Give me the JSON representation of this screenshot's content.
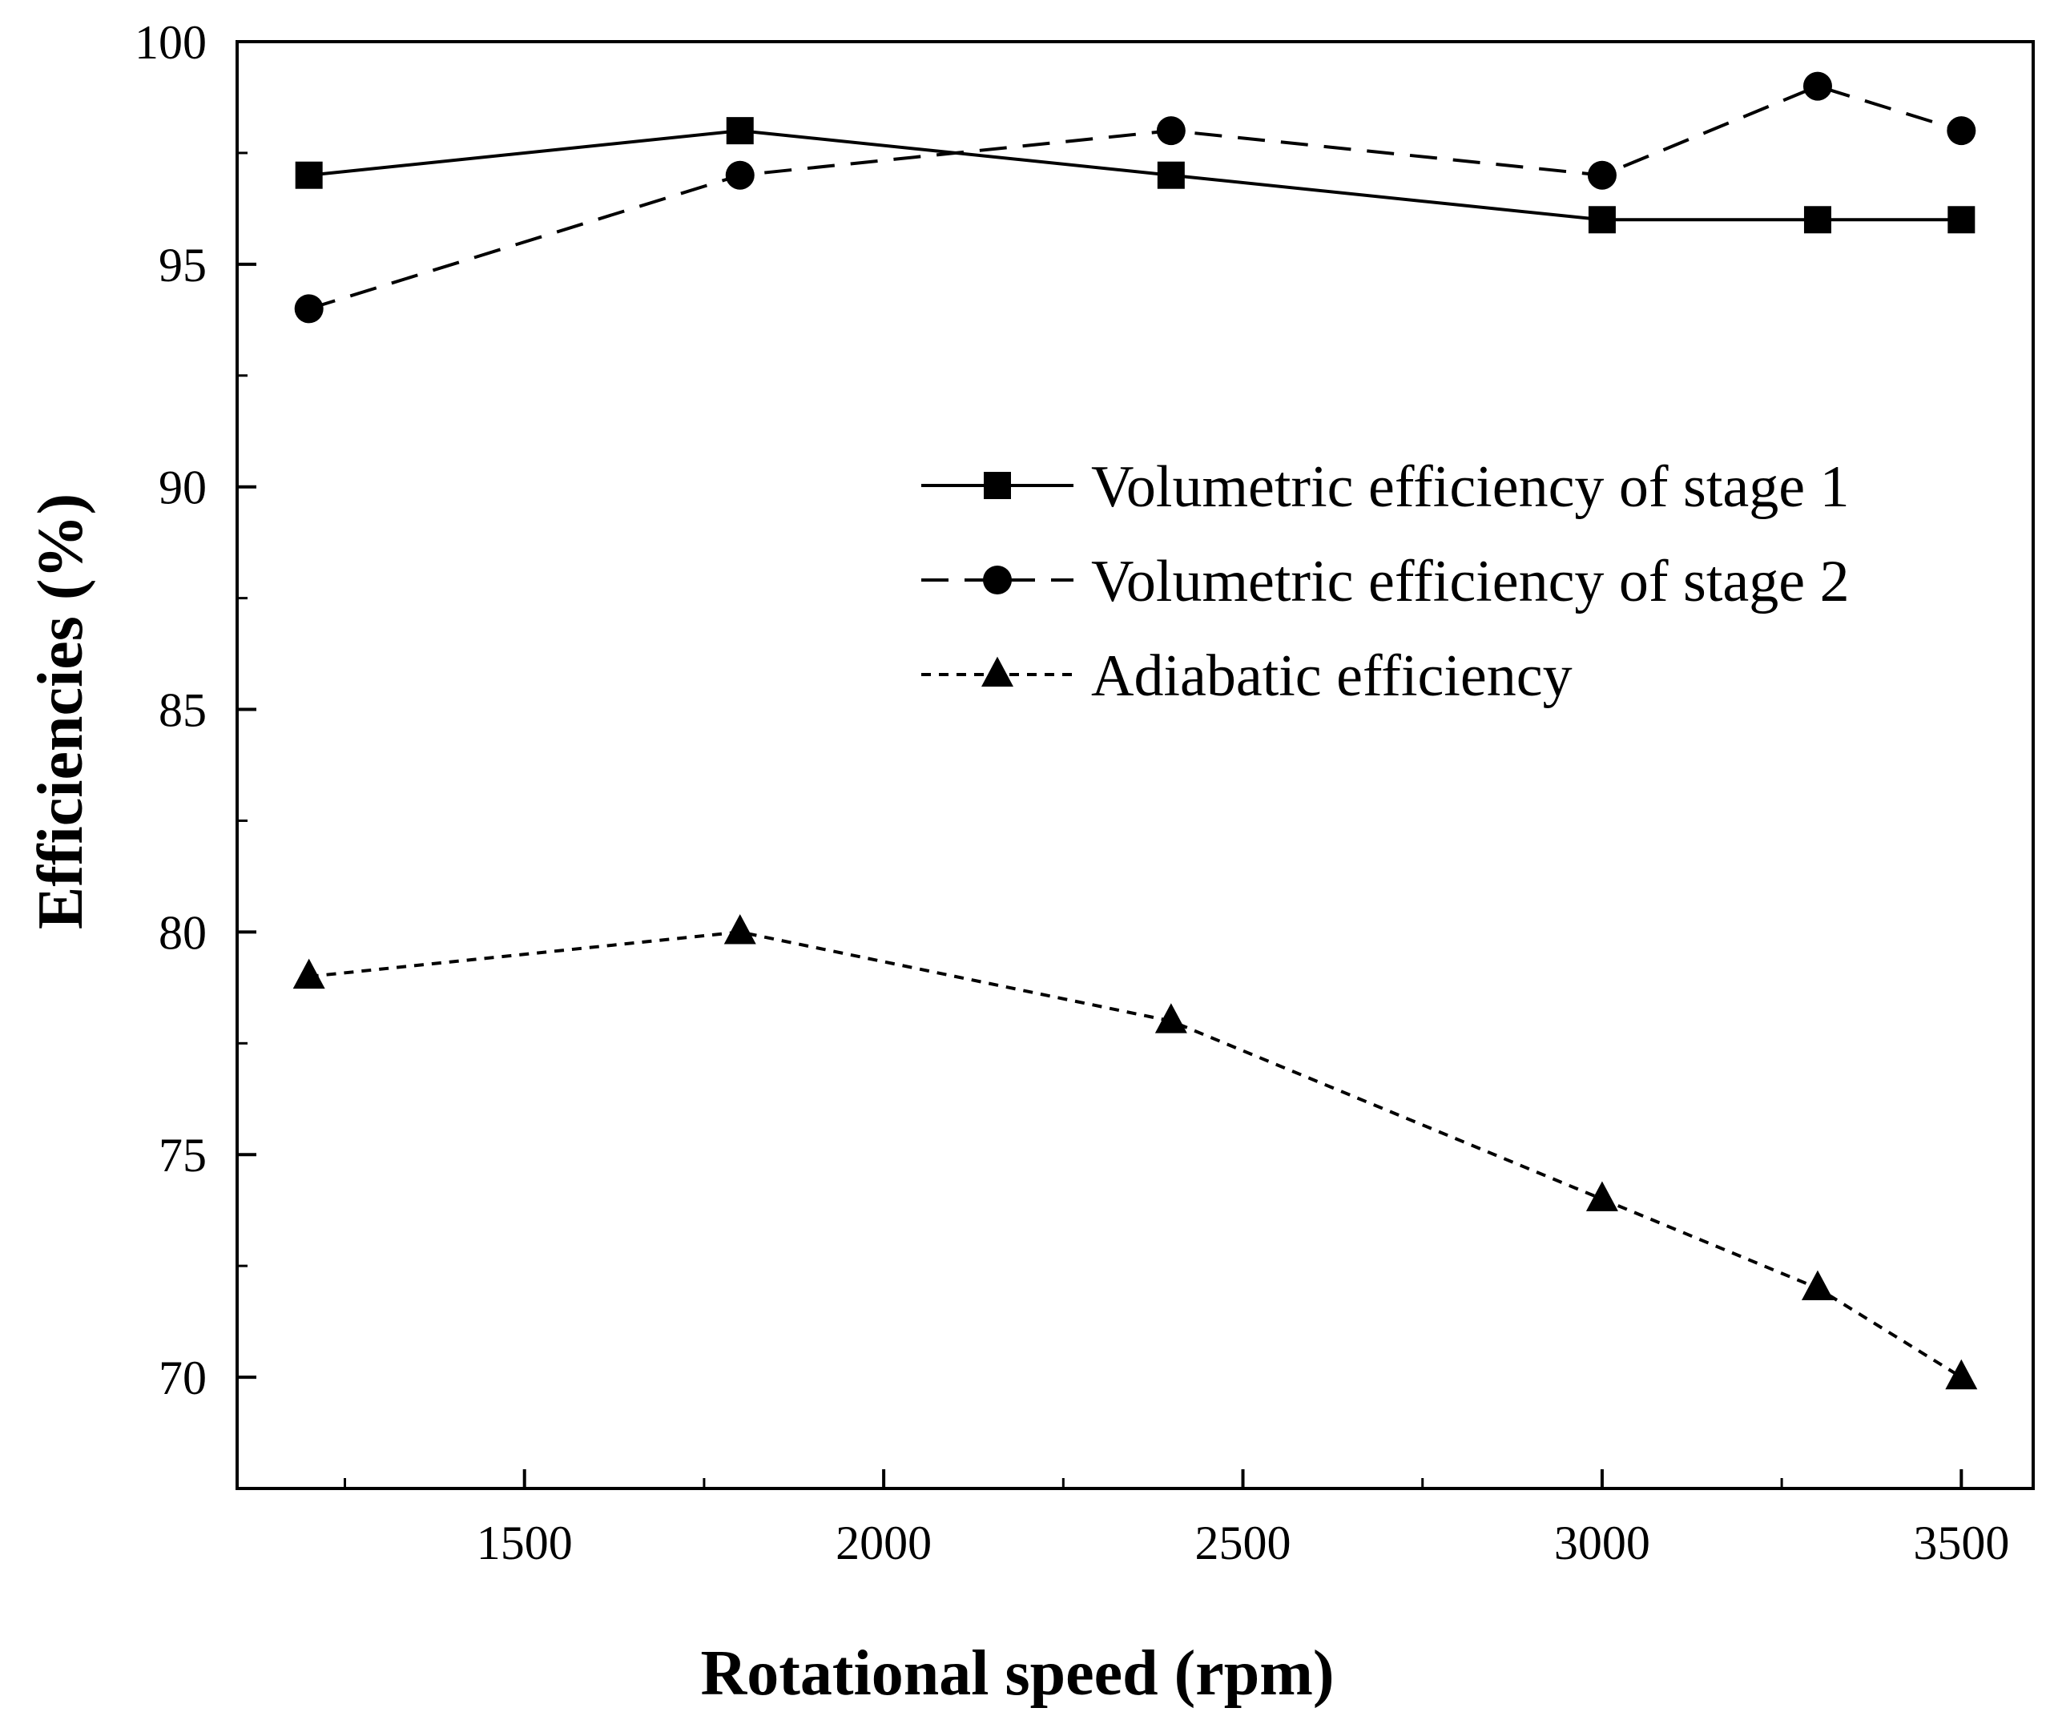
{
  "chart_data": {
    "type": "line",
    "title": "",
    "xlabel": "Rotational speed (rpm)",
    "ylabel": "Efficiencies (%)",
    "xlim": [
      1100,
      3600
    ],
    "ylim": [
      67.5,
      100
    ],
    "x_major_ticks": [
      1500,
      2000,
      2500,
      3000,
      3500
    ],
    "x_minor_ticks": [
      1250,
      1750,
      2250,
      2750,
      3250
    ],
    "y_major_ticks": [
      70,
      75,
      80,
      85,
      90,
      95,
      100
    ],
    "y_minor_ticks": [
      72.5,
      77.5,
      82.5,
      87.5,
      92.5,
      97.5
    ],
    "x_tick_labels": [
      "1500",
      "2000",
      "2500",
      "3000",
      "3500"
    ],
    "y_tick_labels": [
      "70",
      "75",
      "80",
      "85",
      "90",
      "95",
      "100"
    ],
    "grid": false,
    "legend_position": "center-right",
    "x": [
      1200,
      1800,
      2400,
      3000,
      3300,
      3500
    ],
    "series": [
      {
        "name": "Volumetric efficiency of stage 1",
        "marker": "square",
        "line_style": "solid",
        "values": [
          97,
          98,
          97,
          96,
          96,
          96
        ]
      },
      {
        "name": "Volumetric efficiency of stage 2",
        "marker": "circle",
        "line_style": "dashed",
        "values": [
          94,
          97,
          98,
          97,
          99,
          98
        ]
      },
      {
        "name": "Adiabatic efficiency",
        "marker": "triangle",
        "line_style": "dotted",
        "values": [
          79,
          80,
          78,
          74,
          72,
          70
        ]
      }
    ],
    "colors": {
      "line": "#000000",
      "background": "#ffffff"
    }
  }
}
